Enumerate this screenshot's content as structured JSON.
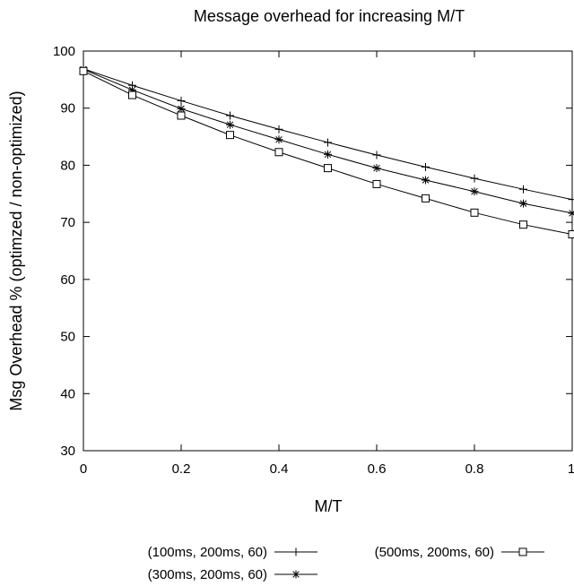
{
  "chart_data": {
    "type": "line",
    "title": "Message overhead for increasing M/T",
    "xlabel": "M/T",
    "ylabel": "Msg Overhead % (optimzed / non-optimized)",
    "xlim": [
      0,
      1
    ],
    "ylim": [
      30,
      100
    ],
    "xticks": [
      0,
      0.2,
      0.4,
      0.6,
      0.8,
      1
    ],
    "xtick_labels": [
      "0",
      "0.2",
      "0.4",
      "0.6",
      "0.8",
      "1"
    ],
    "yticks": [
      30,
      40,
      50,
      60,
      70,
      80,
      90,
      100
    ],
    "ytick_labels": [
      "30",
      "40",
      "50",
      "60",
      "70",
      "80",
      "90",
      "100"
    ],
    "grid": false,
    "legend_position": "bottom",
    "x": [
      0,
      0.1,
      0.2,
      0.3,
      0.4,
      0.5,
      0.6,
      0.7,
      0.8,
      0.9,
      1.0
    ],
    "series": [
      {
        "name": "(100ms, 200ms, 60)",
        "marker": "plus",
        "values": [
          96.9,
          94.0,
          91.3,
          88.7,
          86.3,
          84.0,
          81.8,
          79.7,
          77.7,
          75.8,
          74.0
        ]
      },
      {
        "name": "(300ms, 200ms, 60)",
        "marker": "asterisk",
        "values": [
          96.8,
          93.2,
          89.9,
          87.1,
          84.5,
          81.9,
          79.5,
          77.4,
          75.4,
          73.3,
          71.6
        ]
      },
      {
        "name": "(500ms, 200ms, 60)",
        "marker": "square",
        "values": [
          96.5,
          92.3,
          88.7,
          85.3,
          82.3,
          79.5,
          76.7,
          74.2,
          71.7,
          69.6,
          67.9
        ]
      }
    ],
    "line_color": "#000000"
  }
}
